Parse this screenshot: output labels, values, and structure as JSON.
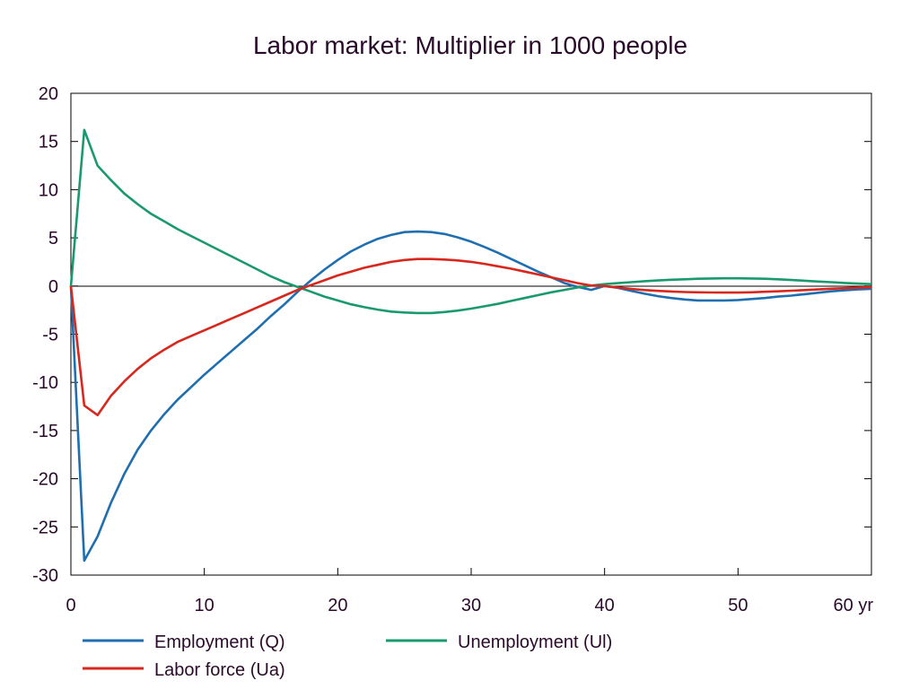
{
  "chart_data": {
    "type": "line",
    "title": "Labor market: Multiplier in 1000 people",
    "xlabel": "",
    "ylabel": "",
    "xlim": [
      0,
      60
    ],
    "ylim": [
      -30,
      20
    ],
    "xticks": [
      0,
      10,
      20,
      30,
      40,
      50,
      60
    ],
    "xtick_labels": [
      "0",
      "10",
      "20",
      "30",
      "40",
      "50",
      "60 yr"
    ],
    "yticks": [
      20,
      15,
      10,
      5,
      0,
      -5,
      -10,
      -15,
      -20,
      -25,
      -30
    ],
    "ytick_labels": [
      "20",
      "15",
      "10",
      "5",
      "0",
      "-5",
      "-10",
      "-15",
      "-20",
      "-25",
      "-30"
    ],
    "grid": false,
    "zero_line": true,
    "legend_position": "bottom",
    "x": [
      0,
      1,
      2,
      3,
      4,
      5,
      6,
      7,
      8,
      9,
      10,
      11,
      12,
      13,
      14,
      15,
      16,
      17,
      18,
      19,
      20,
      21,
      22,
      23,
      24,
      25,
      26,
      27,
      28,
      29,
      30,
      31,
      32,
      33,
      34,
      35,
      36,
      37,
      38,
      39,
      40,
      41,
      42,
      43,
      44,
      45,
      46,
      47,
      48,
      49,
      50,
      51,
      52,
      53,
      54,
      55,
      56,
      57,
      58,
      59,
      60
    ],
    "series": [
      {
        "name": "Employment (Q)",
        "color": "#1f6fb0",
        "values": [
          0,
          -28.5,
          -26,
          -22.5,
          -19.5,
          -17,
          -15,
          -13.3,
          -11.8,
          -10.5,
          -9.2,
          -8,
          -6.8,
          -5.6,
          -4.4,
          -3.1,
          -1.9,
          -0.6,
          0.6,
          1.7,
          2.7,
          3.6,
          4.3,
          4.9,
          5.3,
          5.6,
          5.65,
          5.6,
          5.4,
          5.05,
          4.6,
          4.05,
          3.45,
          2.8,
          2.15,
          1.5,
          0.9,
          0.3,
          -0.1,
          -0.4,
          0,
          -0.2,
          -0.5,
          -0.8,
          -1.05,
          -1.25,
          -1.4,
          -1.5,
          -1.5,
          -1.5,
          -1.45,
          -1.35,
          -1.25,
          -1.1,
          -1.0,
          -0.85,
          -0.7,
          -0.55,
          -0.45,
          -0.35,
          -0.3
        ]
      },
      {
        "name": "Unemployment (Ul)",
        "color": "#1a9a6c",
        "values": [
          0,
          16.2,
          12.5,
          11,
          9.6,
          8.5,
          7.5,
          6.7,
          5.9,
          5.2,
          4.5,
          3.8,
          3.1,
          2.4,
          1.7,
          1.0,
          0.4,
          -0.1,
          -0.6,
          -1.1,
          -1.5,
          -1.9,
          -2.2,
          -2.45,
          -2.65,
          -2.75,
          -2.8,
          -2.8,
          -2.7,
          -2.55,
          -2.35,
          -2.1,
          -1.85,
          -1.55,
          -1.25,
          -0.95,
          -0.65,
          -0.4,
          -0.15,
          0.05,
          0.2,
          0.3,
          0.4,
          0.5,
          0.58,
          0.65,
          0.7,
          0.75,
          0.78,
          0.8,
          0.8,
          0.78,
          0.75,
          0.7,
          0.62,
          0.55,
          0.47,
          0.4,
          0.32,
          0.25,
          0.2
        ]
      },
      {
        "name": "Labor force (Ua)",
        "color": "#d8271c",
        "values": [
          0,
          -12.4,
          -13.4,
          -11.4,
          -9.9,
          -8.6,
          -7.5,
          -6.6,
          -5.8,
          -5.2,
          -4.6,
          -4.0,
          -3.4,
          -2.8,
          -2.2,
          -1.6,
          -1.0,
          -0.4,
          0.1,
          0.6,
          1.1,
          1.5,
          1.9,
          2.2,
          2.5,
          2.7,
          2.8,
          2.8,
          2.75,
          2.65,
          2.5,
          2.3,
          2.05,
          1.8,
          1.5,
          1.2,
          0.9,
          0.6,
          0.3,
          0.05,
          0,
          -0.15,
          -0.3,
          -0.42,
          -0.5,
          -0.57,
          -0.62,
          -0.65,
          -0.67,
          -0.68,
          -0.68,
          -0.65,
          -0.6,
          -0.55,
          -0.48,
          -0.42,
          -0.35,
          -0.28,
          -0.22,
          -0.17,
          -0.12
        ]
      }
    ],
    "legend": [
      {
        "label": "Employment (Q)",
        "color": "#1f6fb0"
      },
      {
        "label": "Unemployment (Ul)",
        "color": "#1a9a6c"
      },
      {
        "label": "Labor force (Ua)",
        "color": "#d8271c"
      }
    ]
  }
}
